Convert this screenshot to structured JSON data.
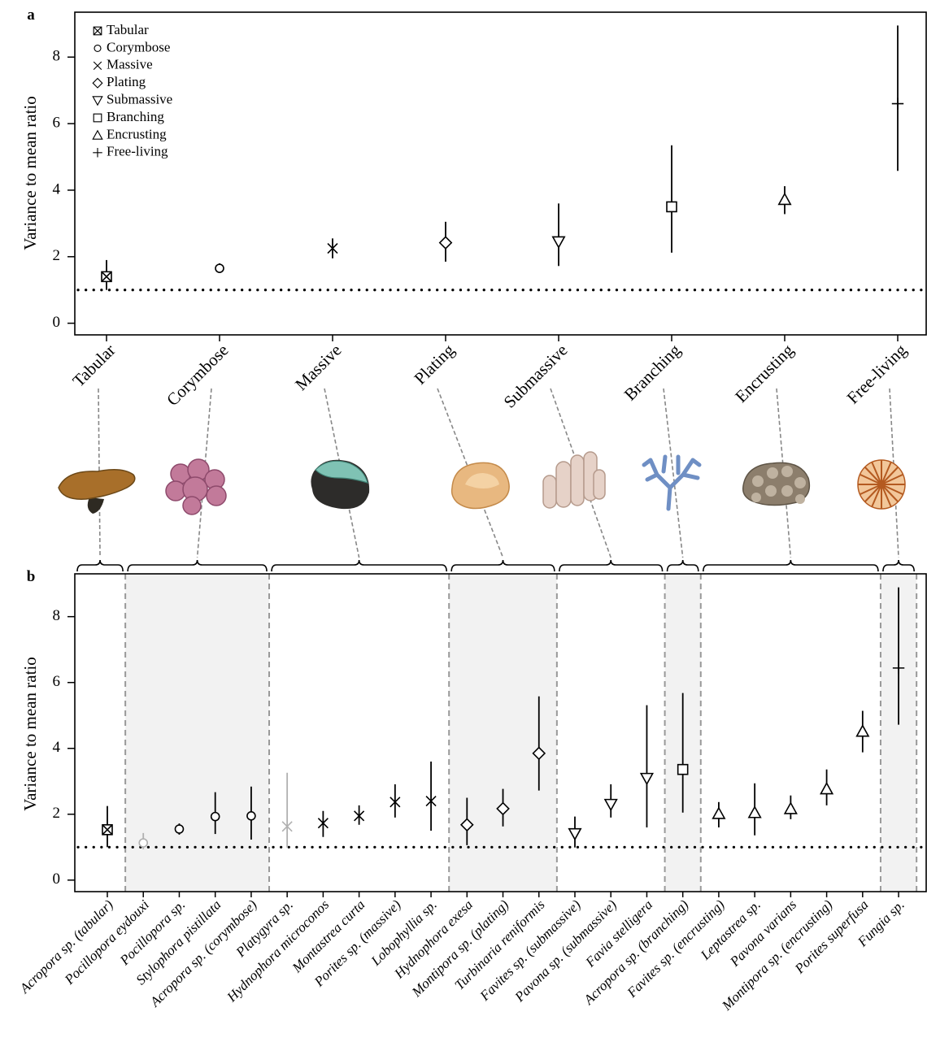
{
  "chart_data": [
    {
      "type": "errorbar",
      "panel_label": "a",
      "ylabel": "Variance to mean ratio",
      "categories": [
        "Tabular",
        "Corymbose",
        "Massive",
        "Plating",
        "Submassive",
        "Branching",
        "Encrusting",
        "Free-living"
      ],
      "values": [
        1.4,
        1.65,
        2.25,
        2.42,
        2.45,
        3.5,
        3.72,
        6.6
      ],
      "lower": [
        1.0,
        1.55,
        1.95,
        1.85,
        1.72,
        2.12,
        3.28,
        4.58
      ],
      "upper": [
        1.9,
        1.8,
        2.55,
        3.05,
        3.6,
        5.35,
        4.12,
        8.95
      ],
      "markers": [
        "square-x",
        "circle",
        "x",
        "diamond",
        "triangle-down",
        "square",
        "triangle-up",
        "plus"
      ],
      "color": "#000000",
      "ylim": [
        -0.35,
        9.35
      ],
      "yticks": [
        0,
        2,
        4,
        6,
        8
      ],
      "reference_line": 1,
      "legend": "upper left"
    },
    {
      "type": "errorbar",
      "panel_label": "b",
      "ylabel": "Variance to mean ratio",
      "ylim": [
        -0.35,
        9.3
      ],
      "yticks": [
        0,
        2,
        4,
        6,
        8
      ],
      "reference_line": 1,
      "groups": [
        {
          "shaded": false,
          "categories": [
            "Acropora sp. (tabular)"
          ],
          "values": [
            1.53
          ],
          "lower": [
            1.0
          ],
          "upper": [
            2.25
          ],
          "colors": [
            "#000000"
          ]
        },
        {
          "shaded": true,
          "categories": [
            "Pocillopora eydouxi",
            "Pocillopora sp.",
            "Stylophora pistillata",
            "Acropora sp. (corymbose)"
          ],
          "values": [
            1.13,
            1.55,
            1.93,
            1.95
          ],
          "lower": [
            0.94,
            1.38,
            1.4,
            1.23
          ],
          "upper": [
            1.43,
            1.72,
            2.67,
            2.84
          ],
          "colors": [
            "#b0b0b0",
            "#000000",
            "#000000",
            "#000000"
          ]
        },
        {
          "shaded": false,
          "categories": [
            "Platygyra sp.",
            "Hydnophora microconos",
            "Montastrea curta",
            "Porites sp. (massive)",
            "Lobophyllia sp."
          ],
          "values": [
            1.63,
            1.73,
            1.95,
            2.37,
            2.4
          ],
          "lower": [
            0.99,
            1.31,
            1.68,
            1.9,
            1.5
          ],
          "upper": [
            3.26,
            2.1,
            2.27,
            2.91,
            3.6
          ],
          "colors": [
            "#b0b0b0",
            "#000000",
            "#000000",
            "#000000",
            "#000000"
          ]
        },
        {
          "shaded": true,
          "categories": [
            "Hydnophora exesa",
            "Montipora sp. (plating)",
            "Turbinaria reniformis"
          ],
          "values": [
            1.68,
            2.17,
            3.85
          ],
          "lower": [
            1.06,
            1.63,
            2.72
          ],
          "upper": [
            2.5,
            2.77,
            5.58
          ],
          "colors": [
            "#000000",
            "#000000",
            "#000000"
          ]
        },
        {
          "shaded": false,
          "categories": [
            "Favites sp. (submassive)",
            "Pavona sp. (submassive)",
            "Favia stelligera"
          ],
          "values": [
            1.41,
            2.3,
            3.09
          ],
          "lower": [
            0.99,
            1.9,
            1.6
          ],
          "upper": [
            1.93,
            2.91,
            5.31
          ],
          "colors": [
            "#000000",
            "#000000",
            "#000000"
          ]
        },
        {
          "shaded": true,
          "categories": [
            "Acropora sp. (branching)"
          ],
          "values": [
            3.36
          ],
          "lower": [
            2.05
          ],
          "upper": [
            5.68
          ],
          "colors": [
            "#000000"
          ]
        },
        {
          "shaded": false,
          "categories": [
            "Favites sp. (encrusting)",
            "Leptastrea sp.",
            "Pavona varians",
            "Montipora sp. (encrusting)",
            "Porites superfusa"
          ],
          "values": [
            2.02,
            2.05,
            2.17,
            2.77,
            4.52
          ],
          "lower": [
            1.6,
            1.36,
            1.85,
            2.27,
            3.88
          ],
          "upper": [
            2.37,
            2.94,
            2.57,
            3.36,
            5.14
          ],
          "colors": [
            "#000000",
            "#000000",
            "#000000",
            "#000000",
            "#000000"
          ]
        },
        {
          "shaded": true,
          "categories": [
            "Fungia sp."
          ],
          "values": [
            6.44
          ],
          "lower": [
            4.72
          ],
          "upper": [
            8.89
          ],
          "colors": [
            "#000000"
          ]
        }
      ]
    }
  ]
}
